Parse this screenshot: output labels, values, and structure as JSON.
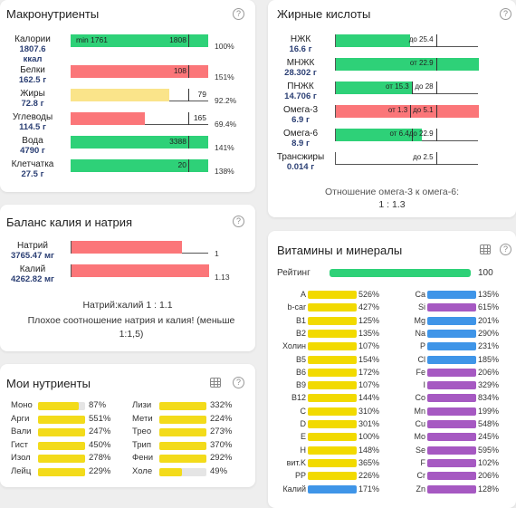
{
  "macro": {
    "title": "Макронутриенты",
    "help": "?",
    "rows": [
      {
        "name": "Калории",
        "amount": "1807.6",
        "unit": "ккал",
        "fill": 1.0,
        "color": "green",
        "min_label": "min 1761",
        "target": "1808",
        "pct": "100%"
      },
      {
        "name": "Белки",
        "amount": "162.5 г",
        "fill": 1.0,
        "color": "red",
        "target": "108",
        "pct": "151%"
      },
      {
        "name": "Жиры",
        "amount": "72.8 г",
        "fill": 0.72,
        "color": "yellow",
        "target": "79",
        "pct": "92.2%"
      },
      {
        "name": "Углеводы",
        "amount": "114.5 г",
        "fill": 0.54,
        "color": "red",
        "target": "165",
        "pct": "69.4%"
      },
      {
        "name": "Вода",
        "amount": "4790 г",
        "fill": 1.0,
        "color": "green",
        "target": "3388",
        "pct": "141%"
      },
      {
        "name": "Клетчатка",
        "amount": "27.5 г",
        "fill": 1.0,
        "color": "green",
        "target": "20",
        "pct": "138%"
      }
    ]
  },
  "fatty": {
    "title": "Жирные кислоты",
    "help": "?",
    "rows": [
      {
        "name": "НЖК",
        "amount": "16.6 г",
        "fill": 0.52,
        "color": "green",
        "labels": [
          {
            "text": "до 25.4",
            "at": 0.7
          }
        ]
      },
      {
        "name": "МНЖК",
        "amount": "28.302 г",
        "fill": 1.0,
        "color": "green",
        "labels": [
          {
            "text": "от 22.9",
            "at": 0.7
          }
        ]
      },
      {
        "name": "ПНЖК",
        "amount": "14.706 г",
        "fill": 0.53,
        "color": "green",
        "labels": [
          {
            "text": "от 15.3",
            "at": 0.53
          },
          {
            "text": "до 28",
            "at": 0.7
          }
        ]
      },
      {
        "name": "Омега-3",
        "amount": "6.9 г",
        "fill": 1.0,
        "color": "red",
        "labels": [
          {
            "text": "от 1.3",
            "at": 0.52
          },
          {
            "text": "до 5.1",
            "at": 0.7
          }
        ]
      },
      {
        "name": "Омега-6",
        "amount": "8.9 г",
        "fill": 0.6,
        "color": "green",
        "labels": [
          {
            "text": "от 6.4",
            "at": 0.53
          },
          {
            "text": "до 22.9",
            "at": 0.7
          }
        ]
      },
      {
        "name": "Трансжиры",
        "amount": "0.014 г",
        "fill": 0.0,
        "color": "green",
        "labels": [
          {
            "text": "до 2.5",
            "at": 0.7
          }
        ]
      }
    ],
    "ratio_label": "Отношение омега-3 к омега-6:",
    "ratio_value": "1 : 1.3"
  },
  "kna": {
    "title": "Баланс калия и натрия",
    "help": "?",
    "rows": [
      {
        "name": "Натрий",
        "amount": "3765.47 мг",
        "fill": 0.8,
        "value": "1"
      },
      {
        "name": "Калий",
        "amount": "4262.82 мг",
        "fill": 1.0,
        "value": "1.13"
      }
    ],
    "ratio": "Натрий:калий 1 : 1.1",
    "warning": "Плохое соотношение натрия и калия! (меньше 1:1,5)"
  },
  "vitamins": {
    "title": "Витамины и минералы",
    "help": "?",
    "rating_label": "Рейтинг",
    "rating_value": "100",
    "rating_fill": 1.0,
    "left": [
      {
        "name": "A",
        "pct": "526%",
        "fill": 1.0,
        "color": "#f2da00"
      },
      {
        "name": "b-car",
        "pct": "427%",
        "fill": 1.0,
        "color": "#f2da00"
      },
      {
        "name": "B1",
        "pct": "125%",
        "fill": 1.0,
        "color": "#f2da00"
      },
      {
        "name": "B2",
        "pct": "135%",
        "fill": 1.0,
        "color": "#f2da00"
      },
      {
        "name": "Холин",
        "pct": "107%",
        "fill": 1.0,
        "color": "#f2da00"
      },
      {
        "name": "B5",
        "pct": "154%",
        "fill": 1.0,
        "color": "#f2da00"
      },
      {
        "name": "B6",
        "pct": "172%",
        "fill": 1.0,
        "color": "#f2da00"
      },
      {
        "name": "B9",
        "pct": "107%",
        "fill": 1.0,
        "color": "#f2da00"
      },
      {
        "name": "B12",
        "pct": "144%",
        "fill": 1.0,
        "color": "#f2da00"
      },
      {
        "name": "C",
        "pct": "310%",
        "fill": 1.0,
        "color": "#f2da00"
      },
      {
        "name": "D",
        "pct": "301%",
        "fill": 1.0,
        "color": "#f2da00"
      },
      {
        "name": "E",
        "pct": "100%",
        "fill": 1.0,
        "color": "#f2da00"
      },
      {
        "name": "H",
        "pct": "148%",
        "fill": 1.0,
        "color": "#f2da00"
      },
      {
        "name": "вит.K",
        "pct": "365%",
        "fill": 1.0,
        "color": "#f2da00"
      },
      {
        "name": "PP",
        "pct": "226%",
        "fill": 1.0,
        "color": "#f2da00"
      },
      {
        "name": "Калий",
        "pct": "171%",
        "fill": 1.0,
        "color": "#3f95e8"
      }
    ],
    "right": [
      {
        "name": "Ca",
        "pct": "135%",
        "fill": 1.0,
        "color": "#3f95e8"
      },
      {
        "name": "Si",
        "pct": "615%",
        "fill": 1.0,
        "color": "#a659c2"
      },
      {
        "name": "Mg",
        "pct": "201%",
        "fill": 1.0,
        "color": "#3f95e8"
      },
      {
        "name": "Na",
        "pct": "290%",
        "fill": 1.0,
        "color": "#3f95e8"
      },
      {
        "name": "P",
        "pct": "231%",
        "fill": 1.0,
        "color": "#3f95e8"
      },
      {
        "name": "Cl",
        "pct": "185%",
        "fill": 1.0,
        "color": "#3f95e8"
      },
      {
        "name": "Fe",
        "pct": "206%",
        "fill": 1.0,
        "color": "#a659c2"
      },
      {
        "name": "I",
        "pct": "329%",
        "fill": 1.0,
        "color": "#a659c2"
      },
      {
        "name": "Co",
        "pct": "834%",
        "fill": 1.0,
        "color": "#a659c2"
      },
      {
        "name": "Mn",
        "pct": "199%",
        "fill": 1.0,
        "color": "#a659c2"
      },
      {
        "name": "Cu",
        "pct": "548%",
        "fill": 1.0,
        "color": "#a659c2"
      },
      {
        "name": "Mo",
        "pct": "245%",
        "fill": 1.0,
        "color": "#a659c2"
      },
      {
        "name": "Se",
        "pct": "595%",
        "fill": 1.0,
        "color": "#a659c2"
      },
      {
        "name": "F",
        "pct": "102%",
        "fill": 1.0,
        "color": "#a659c2"
      },
      {
        "name": "Cr",
        "pct": "206%",
        "fill": 1.0,
        "color": "#a659c2"
      },
      {
        "name": "Zn",
        "pct": "128%",
        "fill": 1.0,
        "color": "#a659c2"
      }
    ]
  },
  "my": {
    "title": "Мои нутриенты",
    "help": "?",
    "left": [
      {
        "name": "Моно",
        "pct": "87%",
        "fill": 0.87
      },
      {
        "name": "Арги",
        "pct": "551%",
        "fill": 1.0
      },
      {
        "name": "Вали",
        "pct": "247%",
        "fill": 1.0
      },
      {
        "name": "Гист",
        "pct": "450%",
        "fill": 1.0
      },
      {
        "name": "Изол",
        "pct": "278%",
        "fill": 1.0
      },
      {
        "name": "Лейц",
        "pct": "229%",
        "fill": 1.0
      }
    ],
    "right": [
      {
        "name": "Лизи",
        "pct": "332%",
        "fill": 1.0
      },
      {
        "name": "Мети",
        "pct": "224%",
        "fill": 1.0
      },
      {
        "name": "Трео",
        "pct": "273%",
        "fill": 1.0
      },
      {
        "name": "Трип",
        "pct": "370%",
        "fill": 1.0
      },
      {
        "name": "Фени",
        "pct": "292%",
        "fill": 1.0
      },
      {
        "name": "Холе",
        "pct": "49%",
        "fill": 0.49
      }
    ]
  }
}
